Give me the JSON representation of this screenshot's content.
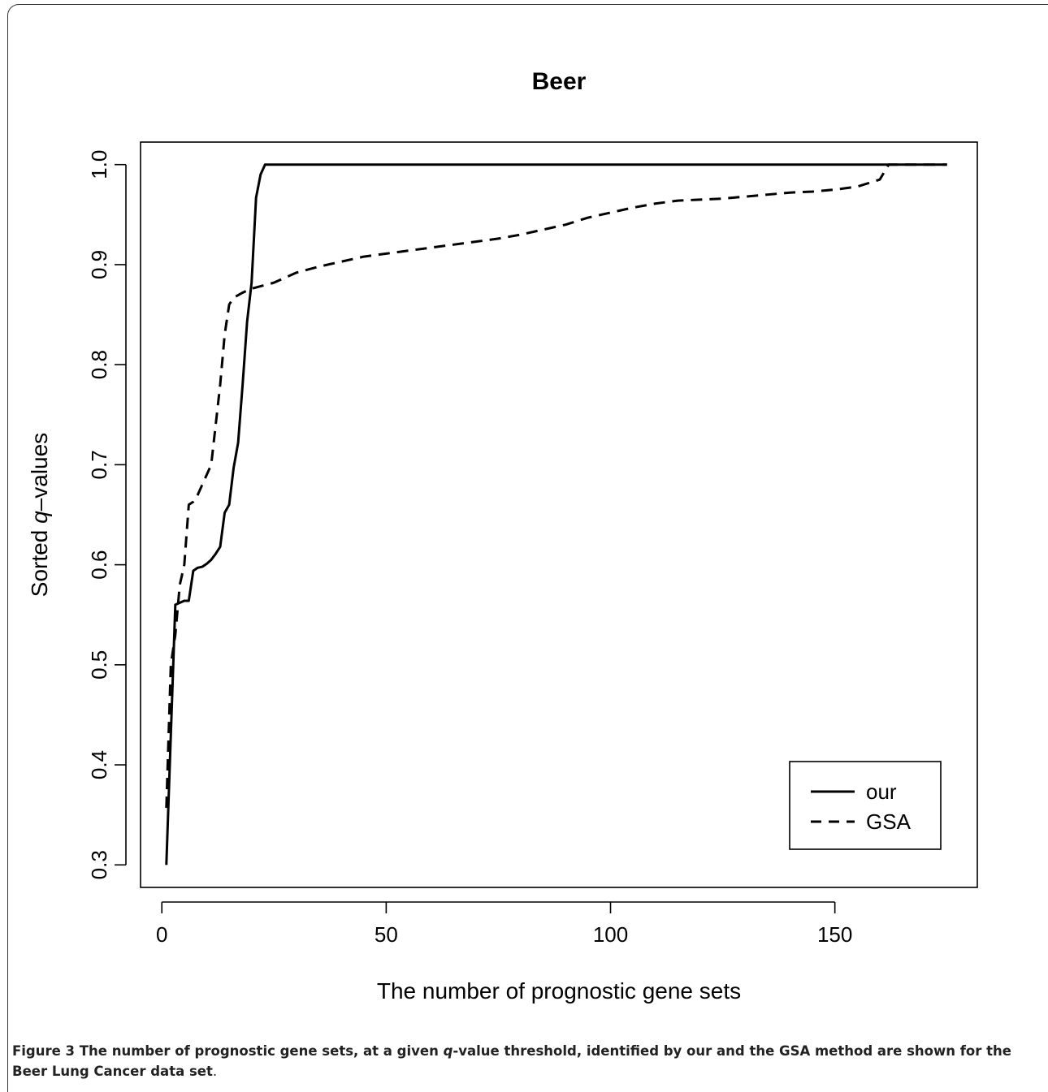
{
  "chart_data": {
    "type": "line",
    "title": "Beer",
    "xlabel": "The number of prognostic gene sets",
    "ylabel_prefix": "Sorted ",
    "ylabel_italic": "q",
    "ylabel_suffix": "–values",
    "xlim": [
      -4.75,
      181.75
    ],
    "ylim": [
      0.2775,
      1.0225
    ],
    "xticks": [
      0,
      50,
      100,
      150
    ],
    "yticks": [
      0.3,
      0.4,
      0.5,
      0.6,
      0.7,
      0.8,
      0.9,
      1.0
    ],
    "ytick_labels": [
      "0.3",
      "0.4",
      "0.5",
      "0.6",
      "0.7",
      "0.8",
      "0.9",
      "1.0"
    ],
    "grid": false,
    "legend_position": "bottom-right",
    "series": [
      {
        "name": "our",
        "style": "solid",
        "color": "#000000",
        "points": [
          [
            1,
            0.3
          ],
          [
            2,
            0.43
          ],
          [
            3,
            0.56
          ],
          [
            4,
            0.562
          ],
          [
            5,
            0.564
          ],
          [
            6,
            0.564
          ],
          [
            7,
            0.594
          ],
          [
            8,
            0.597
          ],
          [
            9,
            0.598
          ],
          [
            10,
            0.601
          ],
          [
            11,
            0.605
          ],
          [
            12,
            0.611
          ],
          [
            13,
            0.618
          ],
          [
            14,
            0.652
          ],
          [
            15,
            0.66
          ],
          [
            16,
            0.697
          ],
          [
            17,
            0.722
          ],
          [
            18,
            0.78
          ],
          [
            19,
            0.843
          ],
          [
            20,
            0.882
          ],
          [
            21,
            0.967
          ],
          [
            22,
            0.99
          ],
          [
            23,
            1.0
          ],
          [
            175,
            1.0
          ]
        ]
      },
      {
        "name": "GSA",
        "style": "dashed",
        "color": "#000000",
        "points": [
          [
            1,
            0.357
          ],
          [
            2,
            0.5
          ],
          [
            3,
            0.53
          ],
          [
            4,
            0.58
          ],
          [
            5,
            0.6
          ],
          [
            6,
            0.66
          ],
          [
            7,
            0.663
          ],
          [
            8,
            0.67
          ],
          [
            9,
            0.68
          ],
          [
            10,
            0.69
          ],
          [
            11,
            0.7
          ],
          [
            12,
            0.74
          ],
          [
            13,
            0.78
          ],
          [
            14,
            0.83
          ],
          [
            15,
            0.86
          ],
          [
            16,
            0.867
          ],
          [
            18,
            0.872
          ],
          [
            20,
            0.876
          ],
          [
            25,
            0.882
          ],
          [
            30,
            0.892
          ],
          [
            35,
            0.898
          ],
          [
            40,
            0.903
          ],
          [
            45,
            0.908
          ],
          [
            50,
            0.911
          ],
          [
            55,
            0.914
          ],
          [
            60,
            0.917
          ],
          [
            65,
            0.92
          ],
          [
            70,
            0.923
          ],
          [
            75,
            0.926
          ],
          [
            80,
            0.93
          ],
          [
            85,
            0.935
          ],
          [
            90,
            0.94
          ],
          [
            95,
            0.947
          ],
          [
            100,
            0.952
          ],
          [
            105,
            0.957
          ],
          [
            110,
            0.961
          ],
          [
            115,
            0.964
          ],
          [
            120,
            0.965
          ],
          [
            125,
            0.966
          ],
          [
            130,
            0.968
          ],
          [
            135,
            0.97
          ],
          [
            140,
            0.972
          ],
          [
            145,
            0.973
          ],
          [
            150,
            0.975
          ],
          [
            155,
            0.978
          ],
          [
            160,
            0.985
          ],
          [
            162,
            1.0
          ],
          [
            175,
            1.0
          ]
        ]
      }
    ]
  },
  "caption": {
    "label": "Figure 3",
    "part1": " The number of prognostic gene sets, at a given ",
    "italic": "q",
    "part2": "-value threshold, identified by our and the GSA method are shown for the Beer Lung Cancer data set",
    "period": "."
  }
}
